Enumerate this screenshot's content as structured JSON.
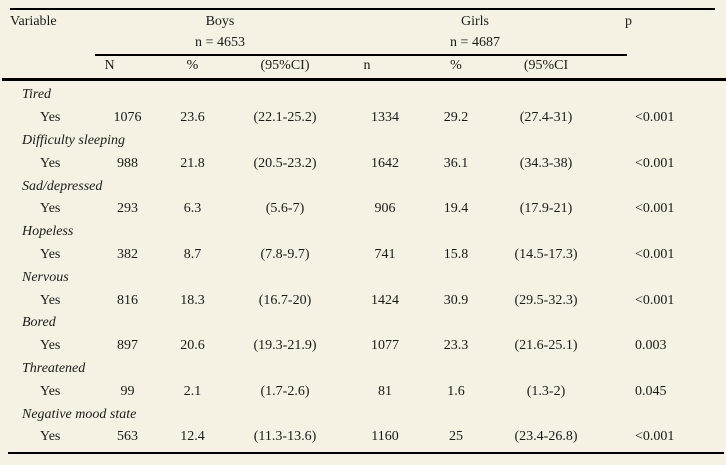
{
  "colors": {
    "background": "#f5f1e3",
    "text": "#1a1a1a",
    "rules": "#000000"
  },
  "table": {
    "header": {
      "variable_label": "Variable",
      "boys_group": {
        "label": "Boys",
        "n_label": "n = 4653"
      },
      "girls_group": {
        "label": "Girls",
        "n_label": "n = 4687"
      },
      "p_label": "p",
      "subcolumns": [
        "N",
        "%",
        "(95%CI)",
        "n",
        "%",
        "(95%CI"
      ]
    },
    "rows": [
      {
        "type": "category",
        "label": "Tired"
      },
      {
        "type": "data",
        "label": "Yes",
        "cells": [
          "1076",
          "23.6",
          "(22.1-25.2)",
          "1334",
          "29.2",
          "(27.4-31)",
          "<0.001"
        ]
      },
      {
        "type": "category",
        "label": "Difficulty sleeping"
      },
      {
        "type": "data",
        "label": "Yes",
        "cells": [
          "988",
          "21.8",
          "(20.5-23.2)",
          "1642",
          "36.1",
          "(34.3-38)",
          "<0.001"
        ]
      },
      {
        "type": "category",
        "label": "Sad/depressed"
      },
      {
        "type": "data",
        "label": "Yes",
        "cells": [
          "293",
          "6.3",
          "(5.6-7)",
          "906",
          "19.4",
          "(17.9-21)",
          "<0.001"
        ]
      },
      {
        "type": "category",
        "label": "Hopeless"
      },
      {
        "type": "data",
        "label": "Yes",
        "cells": [
          "382",
          "8.7",
          "(7.8-9.7)",
          "741",
          "15.8",
          "(14.5-17.3)",
          "<0.001"
        ]
      },
      {
        "type": "category",
        "label": "Nervous"
      },
      {
        "type": "data",
        "label": "Yes",
        "cells": [
          "816",
          "18.3",
          "(16.7-20)",
          "1424",
          "30.9",
          "(29.5-32.3)",
          "<0.001"
        ]
      },
      {
        "type": "category",
        "label": "Bored"
      },
      {
        "type": "data",
        "label": "Yes",
        "cells": [
          "897",
          "20.6",
          "(19.3-21.9)",
          "1077",
          "23.3",
          "(21.6-25.1)",
          "0.003"
        ]
      },
      {
        "type": "category",
        "label": "Threatened"
      },
      {
        "type": "data",
        "label": "Yes",
        "cells": [
          "99",
          "2.1",
          "(1.7-2.6)",
          "81",
          "1.6",
          "(1.3-2)",
          "0.045"
        ]
      },
      {
        "type": "category",
        "label": "Negative mood state"
      },
      {
        "type": "data",
        "label": "Yes",
        "cells": [
          "563",
          "12.4",
          "(11.3-13.6)",
          "1160",
          "25",
          "(23.4-26.8)",
          "<0.001"
        ]
      }
    ]
  }
}
